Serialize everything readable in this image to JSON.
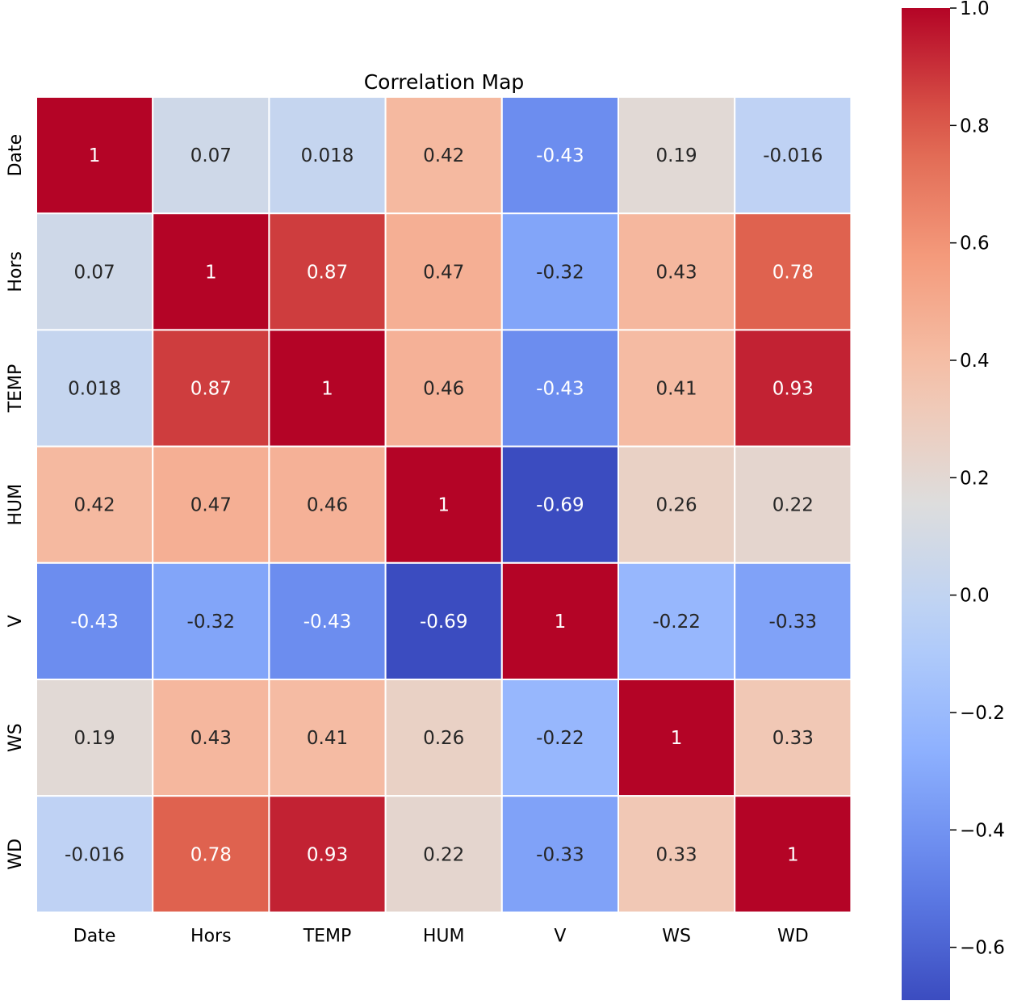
{
  "chart_data": {
    "type": "heatmap",
    "title": "Correlation Map",
    "xlabel": "",
    "ylabel": "",
    "categories": [
      "Date",
      "Hors",
      "TEMP",
      "HUM",
      "V",
      "WS",
      "WD"
    ],
    "values": [
      [
        1,
        0.07,
        0.018,
        0.42,
        -0.43,
        0.19,
        -0.016
      ],
      [
        0.07,
        1,
        0.87,
        0.47,
        -0.32,
        0.43,
        0.78
      ],
      [
        0.018,
        0.87,
        1,
        0.46,
        -0.43,
        0.41,
        0.93
      ],
      [
        0.42,
        0.47,
        0.46,
        1,
        -0.69,
        0.26,
        0.22
      ],
      [
        -0.43,
        -0.32,
        -0.43,
        -0.69,
        1,
        -0.22,
        -0.33
      ],
      [
        0.19,
        0.43,
        0.41,
        0.26,
        -0.22,
        1,
        0.33
      ],
      [
        -0.016,
        0.78,
        0.93,
        0.22,
        -0.33,
        0.33,
        1
      ]
    ],
    "cell_labels": [
      [
        "1",
        "0.07",
        "0.018",
        "0.42",
        "-0.43",
        "0.19",
        "-0.016"
      ],
      [
        "0.07",
        "1",
        "0.87",
        "0.47",
        "-0.32",
        "0.43",
        "0.78"
      ],
      [
        "0.018",
        "0.87",
        "1",
        "0.46",
        "-0.43",
        "0.41",
        "0.93"
      ],
      [
        "0.42",
        "0.47",
        "0.46",
        "1",
        "-0.69",
        "0.26",
        "0.22"
      ],
      [
        "-0.43",
        "-0.32",
        "-0.43",
        "-0.69",
        "1",
        "-0.22",
        "-0.33"
      ],
      [
        "0.19",
        "0.43",
        "0.41",
        "0.26",
        "-0.22",
        "1",
        "0.33"
      ],
      [
        "-0.016",
        "0.78",
        "0.93",
        "0.22",
        "-0.33",
        "0.33",
        "1"
      ]
    ],
    "colormap": "coolwarm",
    "vmin": -0.69,
    "vmax": 1.0,
    "colorbar": {
      "ticks": [
        1.0,
        0.8,
        0.6,
        0.4,
        0.2,
        0.0,
        -0.2,
        -0.4,
        -0.6
      ],
      "tick_labels": [
        "1.0",
        "0.8",
        "0.6",
        "0.4",
        "0.2",
        "0.0",
        "−0.2",
        "−0.4",
        "−0.6"
      ],
      "placement": "right"
    },
    "grid": false,
    "colors": {
      "cell_border": "#ffffff",
      "text_light": "#ffffff",
      "text_dark": "#262626"
    }
  }
}
